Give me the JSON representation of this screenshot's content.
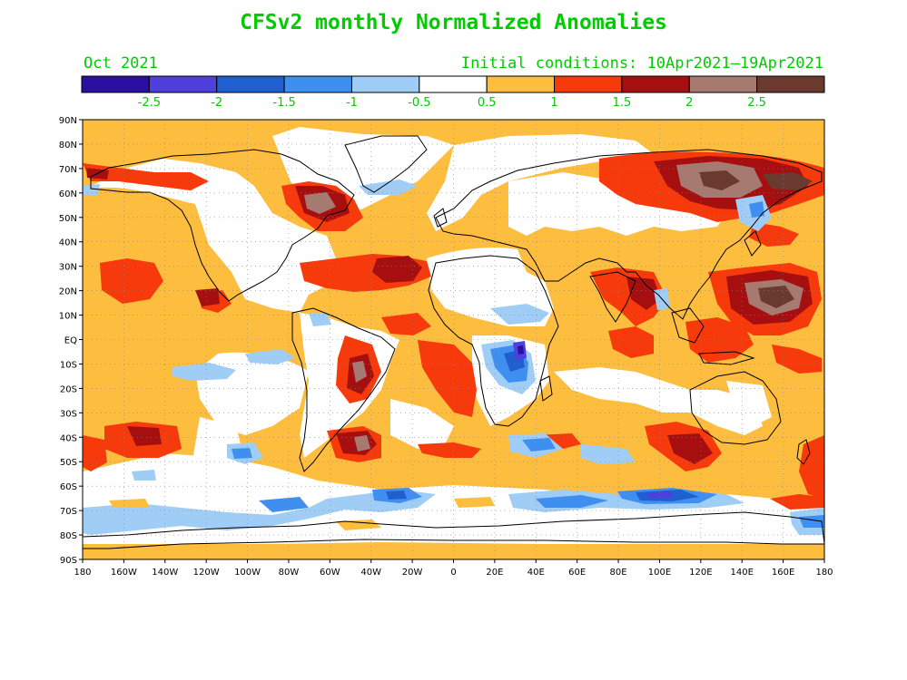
{
  "title": "CFSv2 monthly Normalized Anomalies",
  "month_label": "Oct 2021",
  "init_label": "Initial conditions: 10Apr2021–19Apr2021",
  "colorbar": {
    "colors": [
      "#2a0fa0",
      "#4f3fdc",
      "#1f5fd0",
      "#3e8ff0",
      "#9fcdf5",
      "#ffffff",
      "#fdbd3f",
      "#f73a0b",
      "#a50f0f",
      "#a67a70",
      "#6b3a2e"
    ],
    "labels": [
      "-2.5",
      "-2",
      "-1.5",
      "-1",
      "-0.5",
      "0.5",
      "1",
      "1.5",
      "2",
      "2.5"
    ]
  },
  "map": {
    "lat_labels": [
      "90N",
      "80N",
      "70N",
      "60N",
      "50N",
      "40N",
      "30N",
      "20N",
      "10N",
      "EQ",
      "10S",
      "20S",
      "30S",
      "40S",
      "50S",
      "60S",
      "70S",
      "80S",
      "90S"
    ],
    "lon_labels": [
      "180",
      "160W",
      "140W",
      "120W",
      "100W",
      "80W",
      "60W",
      "40W",
      "20W",
      "0",
      "20E",
      "40E",
      "60E",
      "80E",
      "100E",
      "120E",
      "140E",
      "160E",
      "180"
    ]
  }
}
